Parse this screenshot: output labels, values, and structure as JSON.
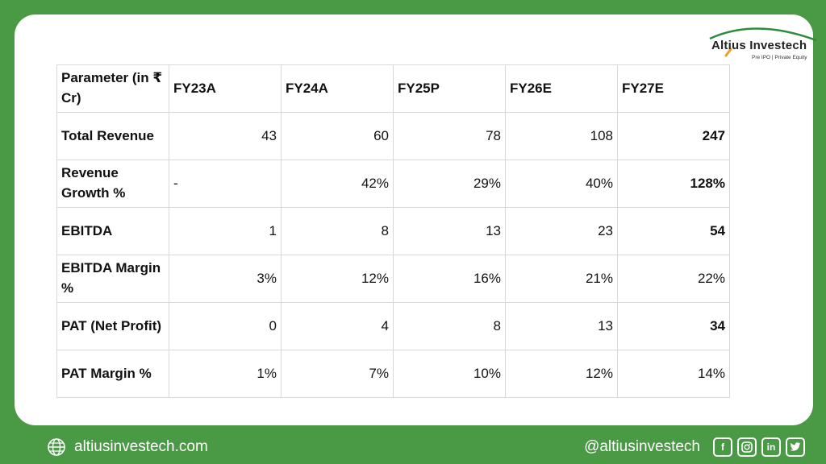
{
  "logo": {
    "name": "Altius Investech",
    "tagline": "Pre IPO | Private Equity"
  },
  "table": {
    "headers": [
      "Parameter (in ₹ Cr)",
      "FY23A",
      "FY24A",
      "FY25P",
      "FY26E",
      "FY27E"
    ],
    "rows": [
      {
        "label": "Total Revenue",
        "values": [
          "43",
          "60",
          "78",
          "108",
          "247"
        ]
      },
      {
        "label": "Revenue Growth %",
        "values": [
          "-",
          "42%",
          "29%",
          "40%",
          "128%"
        ]
      },
      {
        "label": "EBITDA",
        "values": [
          "1",
          "8",
          "13",
          "23",
          "54"
        ]
      },
      {
        "label": "EBITDA Margin %",
        "values": [
          "3%",
          "12%",
          "16%",
          "21%",
          "22%"
        ]
      },
      {
        "label": "PAT (Net Profit)",
        "values": [
          "0",
          "4",
          "8",
          "13",
          "34"
        ]
      },
      {
        "label": "PAT Margin %",
        "values": [
          "1%",
          "7%",
          "10%",
          "12%",
          "14%"
        ]
      }
    ]
  },
  "footer": {
    "website": "altiusinvestech.com",
    "handle": "@altiusinvestech",
    "icons": [
      "facebook-icon",
      "instagram-icon",
      "linkedin-icon",
      "twitter-icon"
    ]
  },
  "colors": {
    "frame": "#4a9a45",
    "accent_orange": "#f0a020"
  }
}
